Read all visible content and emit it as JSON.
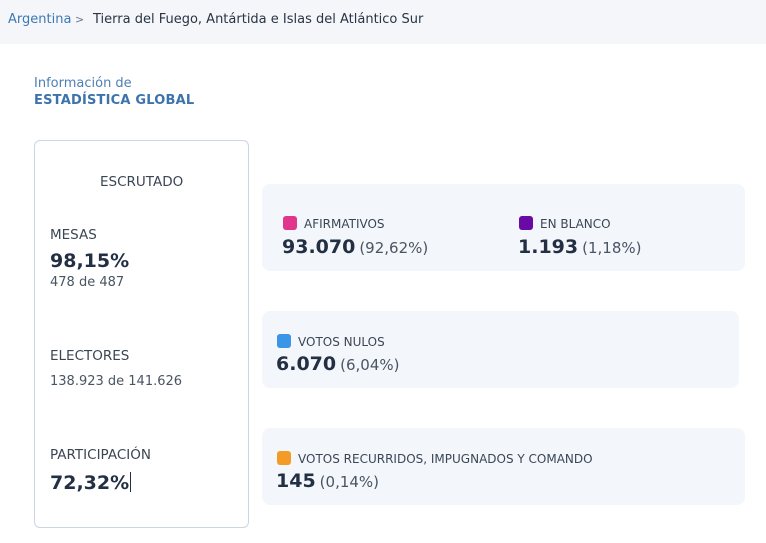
{
  "breadcrumb": {
    "home": "Argentina",
    "separator": ">",
    "current": "Tierra del Fuego, Antártida e Islas del Atlántico Sur"
  },
  "info": {
    "pre_title": "Información de",
    "title": "ESTADÍSTICA GLOBAL"
  },
  "scrutiny": {
    "heading": "ESCRUTADO",
    "mesas_label": "MESAS",
    "mesas_pct": "98,15%",
    "mesas_detail": "478 de 487",
    "electores_label": "ELECTORES",
    "electores_detail": "138.923 de 141.626",
    "participacion_label": "PARTICIPACIÓN",
    "participacion_pct": "72,32%"
  },
  "results": {
    "afirmativos": {
      "label": "AFIRMATIVOS",
      "value": "93.070",
      "pct": "(92,62%)",
      "color": "#e0358b"
    },
    "en_blanco": {
      "label": "EN BLANCO",
      "value": "1.193",
      "pct": "(1,18%)",
      "color": "#6a0aa5"
    },
    "nulos": {
      "label": "VOTOS NULOS",
      "value": "6.070",
      "pct": "(6,04%)",
      "color": "#3b95e6"
    },
    "recurridos": {
      "label": "VOTOS RECURRIDOS, IMPUGNADOS Y COMANDO",
      "value": "145",
      "pct": "(0,14%)",
      "color": "#f29b26"
    }
  }
}
